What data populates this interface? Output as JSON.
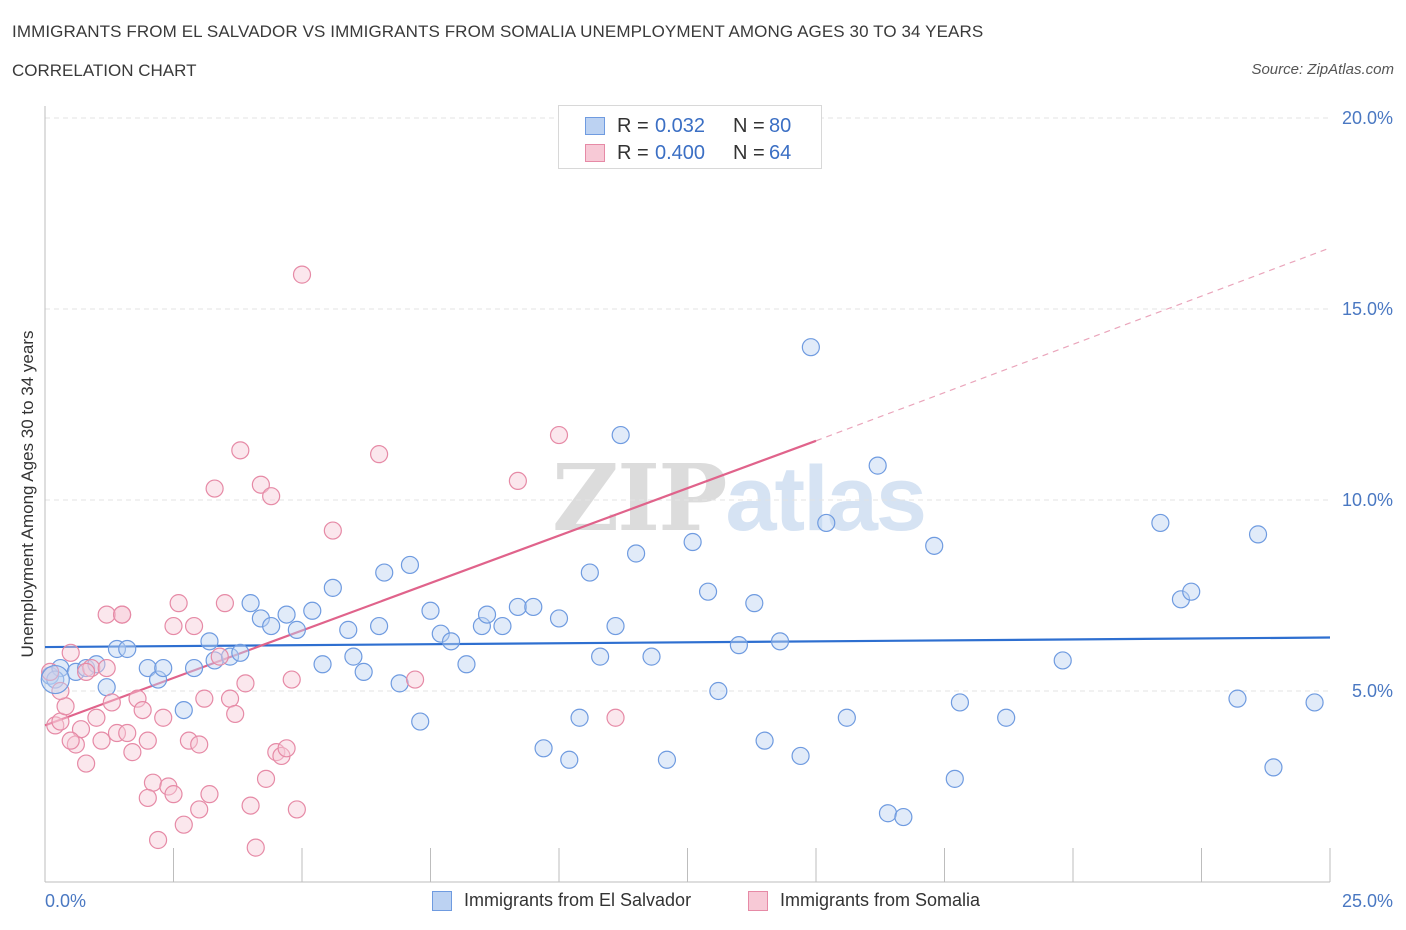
{
  "header": {
    "title": "IMMIGRANTS FROM EL SALVADOR VS IMMIGRANTS FROM SOMALIA UNEMPLOYMENT AMONG AGES 30 TO 34 YEARS",
    "subtitle": "CORRELATION CHART",
    "source": "Source: ZipAtlas.com"
  },
  "watermark": {
    "zip": "ZIP",
    "atlas": "atlas"
  },
  "legend": {
    "rows": [
      {
        "r_label": "R =",
        "r_value": "0.032",
        "n_label": "N =",
        "n_value": "80",
        "color": "#6f9be0",
        "fill": "#bcd2f2"
      },
      {
        "r_label": "R =",
        "r_value": "0.400",
        "n_label": "N =",
        "n_value": "64",
        "color": "#e68aa6",
        "fill": "#f7c9d6"
      }
    ]
  },
  "bottom_legend": {
    "items": [
      {
        "label": "Immigrants from El Salvador",
        "color": "#6f9be0",
        "fill": "#bcd2f2"
      },
      {
        "label": "Immigrants from Somalia",
        "color": "#e68aa6",
        "fill": "#f7c9d6"
      }
    ]
  },
  "chart_data": {
    "type": "scatter",
    "title": "IMMIGRANTS FROM EL SALVADOR VS IMMIGRANTS FROM SOMALIA UNEMPLOYMENT AMONG AGES 30 TO 34 YEARS",
    "xlabel": "",
    "ylabel": "Unemployment Among Ages 30 to 34 years",
    "xlim": [
      0,
      25
    ],
    "ylim": [
      0,
      20
    ],
    "x_tick_labels": [
      "0.0%",
      "25.0%"
    ],
    "y_ticks": [
      5,
      10,
      15,
      20
    ],
    "y_tick_labels": [
      "5.0%",
      "10.0%",
      "15.0%",
      "20.0%"
    ],
    "grid": true,
    "series": [
      {
        "name": "Immigrants from El Salvador",
        "color": "#6f9be0",
        "trend": {
          "x": [
            0,
            25
          ],
          "y": [
            6.15,
            6.4
          ]
        },
        "points": [
          [
            0.1,
            5.4
          ],
          [
            0.3,
            5.6
          ],
          [
            0.6,
            5.5
          ],
          [
            0.8,
            5.6
          ],
          [
            1.0,
            5.7
          ],
          [
            1.2,
            5.1
          ],
          [
            1.4,
            6.1
          ],
          [
            1.6,
            6.1
          ],
          [
            2.0,
            5.6
          ],
          [
            2.2,
            5.3
          ],
          [
            2.3,
            5.6
          ],
          [
            2.7,
            4.5
          ],
          [
            2.9,
            5.6
          ],
          [
            3.2,
            6.3
          ],
          [
            3.3,
            5.8
          ],
          [
            3.6,
            5.9
          ],
          [
            3.8,
            6.0
          ],
          [
            4.0,
            7.3
          ],
          [
            4.2,
            6.9
          ],
          [
            4.4,
            6.7
          ],
          [
            4.7,
            7.0
          ],
          [
            4.9,
            6.6
          ],
          [
            5.2,
            7.1
          ],
          [
            5.4,
            5.7
          ],
          [
            5.6,
            7.7
          ],
          [
            5.9,
            6.6
          ],
          [
            6.0,
            5.9
          ],
          [
            6.2,
            5.5
          ],
          [
            6.5,
            6.7
          ],
          [
            6.6,
            8.1
          ],
          [
            6.9,
            5.2
          ],
          [
            7.1,
            8.3
          ],
          [
            7.3,
            4.2
          ],
          [
            7.5,
            7.1
          ],
          [
            7.7,
            6.5
          ],
          [
            7.9,
            6.3
          ],
          [
            8.2,
            5.7
          ],
          [
            8.5,
            6.7
          ],
          [
            8.6,
            7.0
          ],
          [
            8.9,
            6.7
          ],
          [
            9.2,
            7.2
          ],
          [
            9.5,
            7.2
          ],
          [
            9.7,
            3.5
          ],
          [
            10.0,
            6.9
          ],
          [
            10.2,
            3.2
          ],
          [
            10.4,
            4.3
          ],
          [
            10.6,
            8.1
          ],
          [
            10.8,
            5.9
          ],
          [
            11.1,
            6.7
          ],
          [
            11.2,
            11.7
          ],
          [
            11.5,
            8.6
          ],
          [
            11.8,
            5.9
          ],
          [
            12.1,
            3.2
          ],
          [
            12.6,
            8.9
          ],
          [
            12.9,
            7.6
          ],
          [
            13.1,
            5.0
          ],
          [
            13.5,
            6.2
          ],
          [
            13.8,
            7.3
          ],
          [
            14.0,
            3.7
          ],
          [
            14.3,
            6.3
          ],
          [
            14.7,
            3.3
          ],
          [
            14.9,
            14.0
          ],
          [
            15.2,
            9.4
          ],
          [
            15.6,
            4.3
          ],
          [
            16.2,
            10.9
          ],
          [
            16.4,
            1.8
          ],
          [
            16.7,
            1.7
          ],
          [
            17.3,
            8.8
          ],
          [
            17.7,
            2.7
          ],
          [
            17.8,
            4.7
          ],
          [
            18.7,
            4.3
          ],
          [
            19.8,
            5.8
          ],
          [
            21.7,
            9.4
          ],
          [
            22.1,
            7.4
          ],
          [
            22.3,
            7.6
          ],
          [
            23.2,
            4.8
          ],
          [
            23.6,
            9.1
          ],
          [
            23.9,
            3.0
          ],
          [
            24.7,
            4.7
          ],
          [
            0.2,
            5.3
          ]
        ]
      },
      {
        "name": "Immigrants from Somalia",
        "color": "#e68aa6",
        "trend": {
          "x": [
            0,
            15
          ],
          "y": [
            4.1,
            11.55
          ]
        },
        "trend_dashed": {
          "x": [
            15,
            25
          ],
          "y": [
            11.55,
            16.6
          ]
        },
        "points": [
          [
            0.1,
            5.5
          ],
          [
            0.2,
            4.1
          ],
          [
            0.3,
            4.2
          ],
          [
            0.4,
            4.6
          ],
          [
            0.5,
            6.0
          ],
          [
            0.6,
            3.6
          ],
          [
            0.7,
            4.0
          ],
          [
            0.8,
            3.1
          ],
          [
            0.9,
            5.6
          ],
          [
            1.0,
            4.3
          ],
          [
            1.1,
            3.7
          ],
          [
            1.2,
            5.6
          ],
          [
            1.3,
            4.7
          ],
          [
            1.4,
            3.9
          ],
          [
            1.5,
            7.0
          ],
          [
            1.6,
            3.9
          ],
          [
            1.7,
            3.4
          ],
          [
            1.8,
            4.8
          ],
          [
            1.9,
            4.5
          ],
          [
            2.0,
            3.7
          ],
          [
            2.1,
            2.6
          ],
          [
            2.2,
            1.1
          ],
          [
            2.3,
            4.3
          ],
          [
            2.4,
            2.5
          ],
          [
            2.5,
            2.3
          ],
          [
            2.6,
            7.3
          ],
          [
            2.7,
            1.5
          ],
          [
            2.8,
            3.7
          ],
          [
            2.9,
            6.7
          ],
          [
            3.0,
            3.6
          ],
          [
            3.1,
            4.8
          ],
          [
            3.2,
            2.3
          ],
          [
            3.3,
            10.3
          ],
          [
            3.4,
            5.9
          ],
          [
            3.5,
            7.3
          ],
          [
            3.6,
            4.8
          ],
          [
            3.7,
            4.4
          ],
          [
            3.8,
            11.3
          ],
          [
            3.9,
            5.2
          ],
          [
            4.0,
            2.0
          ],
          [
            4.1,
            0.9
          ],
          [
            4.2,
            10.4
          ],
          [
            4.3,
            2.7
          ],
          [
            4.4,
            10.1
          ],
          [
            4.5,
            3.4
          ],
          [
            4.6,
            3.3
          ],
          [
            4.7,
            3.5
          ],
          [
            4.8,
            5.3
          ],
          [
            4.9,
            1.9
          ],
          [
            5.0,
            15.9
          ],
          [
            5.6,
            9.2
          ],
          [
            6.5,
            11.2
          ],
          [
            7.2,
            5.3
          ],
          [
            9.2,
            10.5
          ],
          [
            10.0,
            11.7
          ],
          [
            11.1,
            4.3
          ],
          [
            0.3,
            5.0
          ],
          [
            0.5,
            3.7
          ],
          [
            0.8,
            5.5
          ],
          [
            1.2,
            7.0
          ],
          [
            1.5,
            7.0
          ],
          [
            2.0,
            2.2
          ],
          [
            2.5,
            6.7
          ],
          [
            3.0,
            1.9
          ]
        ]
      }
    ]
  }
}
